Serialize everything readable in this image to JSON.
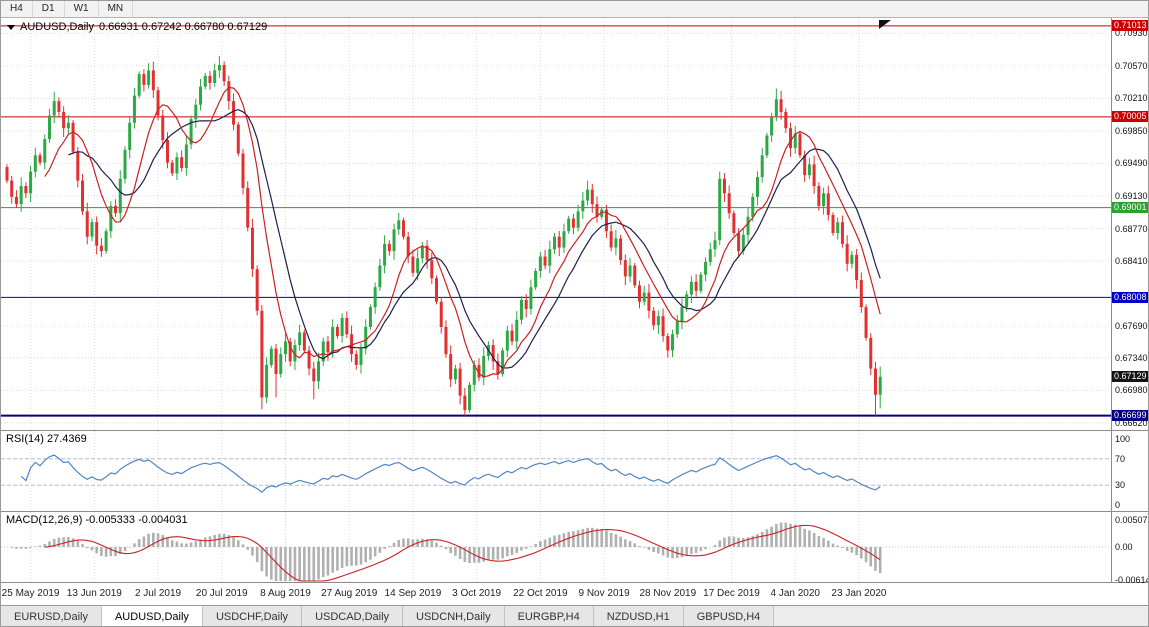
{
  "toolbar": {
    "buttons": [
      "H4",
      "D1",
      "W1",
      "MN"
    ]
  },
  "chart_data": {
    "type": "candlestick",
    "symbol_period": "AUDUSD,Daily",
    "title_ohlc": "0.66931 0.67242 0.66780 0.67129",
    "price_top": 0.711,
    "price_bottom": 0.6654,
    "price_ticks": [
      0.7093,
      0.7057,
      0.7021,
      0.6985,
      0.6949,
      0.6913,
      0.6877,
      0.6841,
      0.6769,
      0.6734,
      0.6698,
      0.6662
    ],
    "hlines": [
      {
        "price": 0.71013,
        "color": "#cc0000",
        "width": 1
      },
      {
        "price": 0.70005,
        "color": "#cc0000",
        "width": 1
      },
      {
        "price": 0.69001,
        "color": "#2aa12a",
        "width": 1
      },
      {
        "price": 0.68008,
        "color": "#0000c8",
        "width": 1
      },
      {
        "price": 0.66699,
        "color": "#000080",
        "width": 2
      }
    ],
    "current_price": {
      "value": 0.67129,
      "bg": "#141414"
    },
    "candles": {
      "up_color": "#2ca844",
      "down_color": "#e03030",
      "first_open": 0.6945,
      "closes": [
        0.693,
        0.6912,
        0.6904,
        0.6924,
        0.6916,
        0.694,
        0.6958,
        0.695,
        0.6976,
        0.7002,
        0.7018,
        0.7006,
        0.6988,
        0.6994,
        0.6962,
        0.693,
        0.6896,
        0.6868,
        0.6884,
        0.6858,
        0.6852,
        0.6874,
        0.6902,
        0.6894,
        0.6932,
        0.6964,
        0.6994,
        0.7024,
        0.7048,
        0.7036,
        0.7052,
        0.703,
        0.7002,
        0.6975,
        0.695,
        0.6938,
        0.6956,
        0.6944,
        0.697,
        0.6998,
        0.7014,
        0.7034,
        0.7046,
        0.7038,
        0.7052,
        0.7058,
        0.704,
        0.7018,
        0.6992,
        0.696,
        0.6922,
        0.6878,
        0.6832,
        0.6786,
        0.669,
        0.6726,
        0.6744,
        0.6716,
        0.6738,
        0.6752,
        0.673,
        0.6748,
        0.6762,
        0.6742,
        0.6722,
        0.6708,
        0.673,
        0.6752,
        0.674,
        0.6768,
        0.6758,
        0.6778,
        0.676,
        0.6738,
        0.6726,
        0.6744,
        0.6768,
        0.679,
        0.6812,
        0.6836,
        0.686,
        0.6852,
        0.6876,
        0.6886,
        0.6868,
        0.6846,
        0.6828,
        0.6844,
        0.6858,
        0.6842,
        0.6822,
        0.6796,
        0.6768,
        0.6738,
        0.671,
        0.6722,
        0.6692,
        0.6676,
        0.6704,
        0.6726,
        0.6712,
        0.6736,
        0.6748,
        0.673,
        0.6716,
        0.6742,
        0.6764,
        0.6752,
        0.6776,
        0.6798,
        0.6788,
        0.6812,
        0.683,
        0.6846,
        0.6836,
        0.6854,
        0.6868,
        0.6856,
        0.6874,
        0.6888,
        0.6878,
        0.6896,
        0.6908,
        0.692,
        0.6904,
        0.689,
        0.6898,
        0.6874,
        0.6856,
        0.6866,
        0.6842,
        0.6824,
        0.6836,
        0.6814,
        0.6796,
        0.6806,
        0.6786,
        0.677,
        0.678,
        0.6758,
        0.6742,
        0.676,
        0.6774,
        0.679,
        0.6804,
        0.6818,
        0.6808,
        0.6826,
        0.684,
        0.6854,
        0.6864,
        0.6932,
        0.6916,
        0.6894,
        0.6872,
        0.6852,
        0.687,
        0.689,
        0.6912,
        0.6934,
        0.6958,
        0.698,
        0.7,
        0.702,
        0.7006,
        0.6988,
        0.6966,
        0.6982,
        0.6958,
        0.6936,
        0.6948,
        0.6924,
        0.6902,
        0.6916,
        0.6892,
        0.6872,
        0.6884,
        0.686,
        0.6838,
        0.6848,
        0.682,
        0.679,
        0.6756,
        0.6722,
        0.6693,
        0.67129
      ],
      "overrides": {
        "10": {
          "h": 0.7028
        },
        "30": {
          "h": 0.706
        },
        "45": {
          "h": 0.7068
        },
        "54": {
          "l": 0.6677
        },
        "57": {
          "l": 0.669
        },
        "65": {
          "l": 0.6688
        },
        "97": {
          "l": 0.667
        },
        "123": {
          "h": 0.693
        },
        "140": {
          "l": 0.6734
        },
        "151": {
          "h": 0.694
        },
        "163": {
          "h": 0.7032
        },
        "184": {
          "l": 0.667
        },
        "185": {
          "o": 0.66931,
          "h": 0.67242,
          "l": 0.6678
        }
      }
    },
    "moving_averages": [
      {
        "period": 9,
        "color": "#cc2020"
      },
      {
        "period": 14,
        "color": "#1f1f4e"
      }
    ],
    "x_axis": [
      {
        "text": "25 May 2019",
        "bar": 5
      },
      {
        "text": "13 Jun 2019",
        "bar": 18.5
      },
      {
        "text": "2 Jul 2019",
        "bar": 32
      },
      {
        "text": "20 Jul 2019",
        "bar": 45.5
      },
      {
        "text": "8 Aug 2019",
        "bar": 59
      },
      {
        "text": "27 Aug 2019",
        "bar": 72.5
      },
      {
        "text": "14 Sep 2019",
        "bar": 86
      },
      {
        "text": "3 Oct 2019",
        "bar": 99.5
      },
      {
        "text": "22 Oct 2019",
        "bar": 113
      },
      {
        "text": "9 Nov 2019",
        "bar": 126.5
      },
      {
        "text": "28 Nov 2019",
        "bar": 140
      },
      {
        "text": "17 Dec 2019",
        "bar": 153.5
      },
      {
        "text": "4 Jan 2020",
        "bar": 167
      },
      {
        "text": "23 Jan 2020",
        "bar": 180.5
      }
    ]
  },
  "indicators": {
    "rsi": {
      "label": "RSI(14)",
      "value": "27.4369",
      "period": 14,
      "levels": [
        100,
        70,
        30,
        0
      ],
      "level_lines": [
        70,
        30
      ],
      "color": "#4f86c6"
    },
    "macd": {
      "label": "MACD(12,26,9)",
      "values": "-0.005333 -0.004031",
      "fast": 12,
      "slow": 26,
      "signal": 9,
      "scale_labels": [
        "0.00507",
        "0.00",
        "-0.00614"
      ],
      "scale_values": [
        0.00507,
        0,
        -0.00614
      ],
      "hist_color": "#b0b0b0",
      "signal_color": "#cc2222"
    }
  },
  "tabs": {
    "active": "AUDUSD,Daily",
    "items": [
      "EURUSD,Daily",
      "AUDUSD,Daily",
      "USDCHF,Daily",
      "USDCAD,Daily",
      "USDCNH,Daily",
      "EURGBP,H4",
      "NZDUSD,H1",
      "GBPUSD,H4"
    ]
  },
  "colors": {
    "grid": "#dcdcdc",
    "rsi_level_line": "#b9b9d9"
  }
}
